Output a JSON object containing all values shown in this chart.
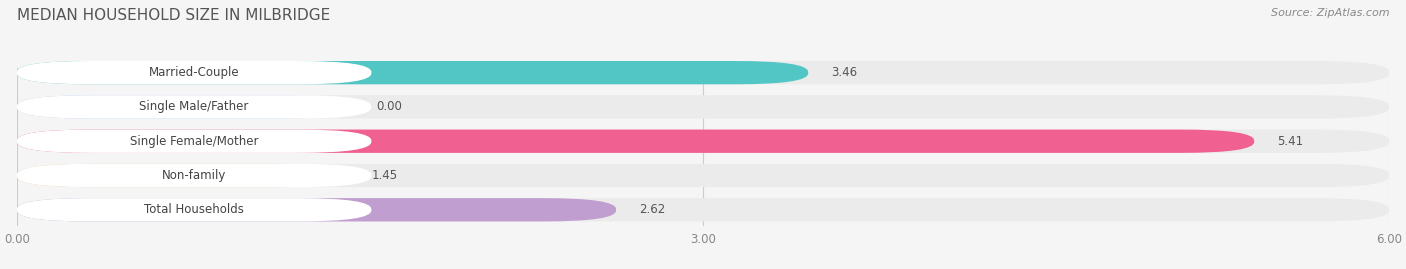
{
  "title": "MEDIAN HOUSEHOLD SIZE IN MILBRIDGE",
  "source": "Source: ZipAtlas.com",
  "categories": [
    "Married-Couple",
    "Single Male/Father",
    "Single Female/Mother",
    "Non-family",
    "Total Households"
  ],
  "values": [
    3.46,
    0.0,
    5.41,
    1.45,
    2.62
  ],
  "bar_colors": [
    "#52C5C5",
    "#AAC8E8",
    "#F06090",
    "#F5C898",
    "#C09ED0"
  ],
  "label_bg_color": "#ffffff",
  "bar_bg_color": "#ebebeb",
  "fig_bg_color": "#f5f5f5",
  "xlim": [
    0,
    6.0
  ],
  "xticks": [
    0.0,
    3.0,
    6.0
  ],
  "title_fontsize": 11,
  "label_fontsize": 8.5,
  "value_fontsize": 8.5,
  "source_fontsize": 8
}
